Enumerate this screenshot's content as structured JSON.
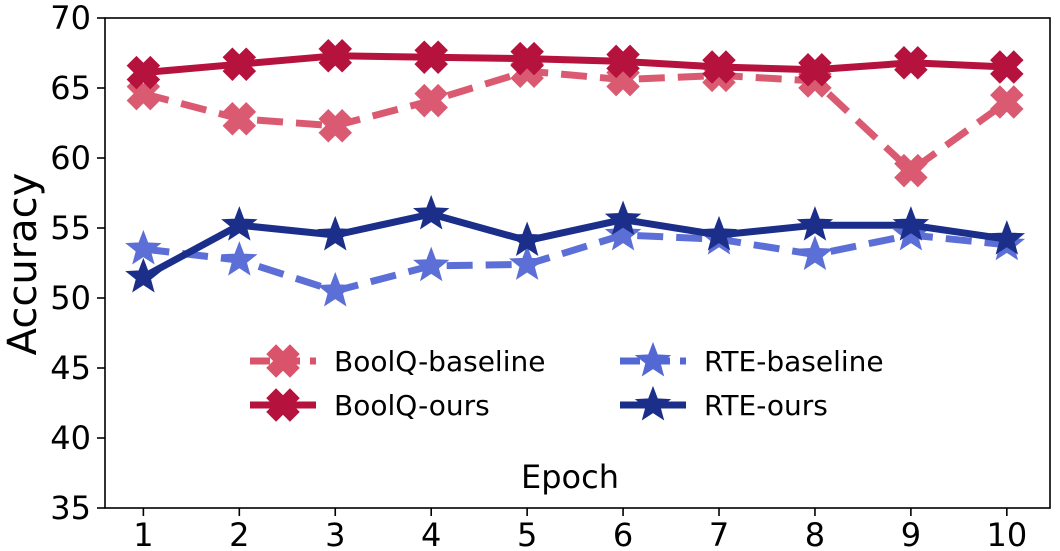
{
  "chart_data": {
    "type": "line",
    "title": "",
    "xlabel": "Epoch",
    "ylabel": "Accuracy",
    "x": [
      1,
      2,
      3,
      4,
      5,
      6,
      7,
      8,
      9,
      10
    ],
    "xticks": [
      "1",
      "2",
      "3",
      "4",
      "5",
      "6",
      "7",
      "8",
      "9",
      "10"
    ],
    "yticks": [
      "35",
      "40",
      "45",
      "50",
      "55",
      "60",
      "65",
      "70"
    ],
    "ytick_values": [
      35,
      40,
      45,
      50,
      55,
      60,
      65,
      70
    ],
    "xlim": [
      0.6,
      10.45
    ],
    "ylim": [
      35,
      70
    ],
    "grid": false,
    "legend_position": "center-bottom, two columns",
    "series": [
      {
        "name": "BoolQ-baseline",
        "values": [
          64.6,
          62.8,
          62.3,
          64.1,
          66.2,
          65.6,
          65.9,
          65.5,
          59.1,
          64.0
        ],
        "color": "#d9536a",
        "line_style": "dashed",
        "marker": "x-cross"
      },
      {
        "name": "BoolQ-ours",
        "values": [
          66.1,
          66.7,
          67.3,
          67.2,
          67.1,
          66.9,
          66.5,
          66.3,
          66.8,
          66.5
        ],
        "color": "#b5123e",
        "line_style": "solid",
        "marker": "x-cross"
      },
      {
        "name": "RTE-baseline",
        "values": [
          53.5,
          52.7,
          50.5,
          52.3,
          52.4,
          54.5,
          54.2,
          53.1,
          54.5,
          53.8
        ],
        "color": "#5468d4",
        "line_style": "dashed",
        "marker": "star"
      },
      {
        "name": "RTE-ours",
        "values": [
          51.5,
          55.2,
          54.5,
          56.0,
          54.1,
          55.6,
          54.5,
          55.2,
          55.2,
          54.2
        ],
        "color": "#1b2f8a",
        "line_style": "solid",
        "marker": "star"
      }
    ]
  }
}
